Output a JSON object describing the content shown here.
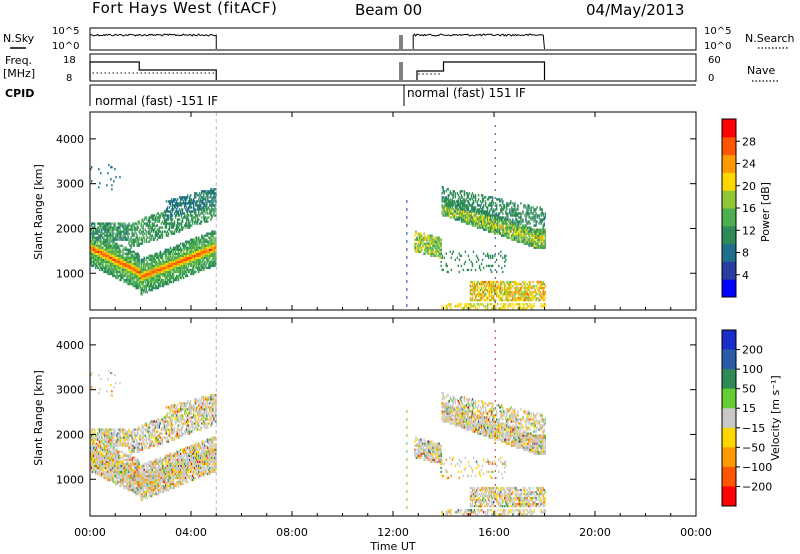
{
  "header": {
    "station": "Fort Hays West (fitACF)",
    "beam": "Beam 00",
    "date": "04/May/2013"
  },
  "left_labels": {
    "nsky": "N.Sky",
    "freq_line1": "Freq.",
    "freq_line2": "[MHz]",
    "cpid": "CPID"
  },
  "right_labels": {
    "nsearch": "N.Search",
    "nave": "Nave"
  },
  "strips": {
    "noise_left_ticks": [
      "10^5",
      "10^0"
    ],
    "noise_right_ticks": [
      "10^5",
      "10^0"
    ],
    "freq_left_ticks": [
      "18",
      "8"
    ],
    "freq_right_ticks": [
      "60",
      "0"
    ]
  },
  "cpid_labels": [
    {
      "text": "normal (fast) -151 IF",
      "start_hour": 0.0
    },
    {
      "text": "normal (fast) 151 IF",
      "start_hour": 12.95
    }
  ],
  "chart_data": [
    {
      "type": "heatmap",
      "name": "power",
      "xlabel": "Time UT",
      "ylabel": "Slant Range [km]",
      "xlim": [
        0,
        24
      ],
      "ylim": [
        180,
        4600
      ],
      "x_tick_labels": [
        "00:00",
        "04:00",
        "08:00",
        "12:00",
        "16:00",
        "20:00",
        "00:00"
      ],
      "y_ticks": [
        1000,
        2000,
        3000,
        4000
      ],
      "colorbar_label": "Power [dB]",
      "colorbar_ticks": [
        4,
        8,
        12,
        16,
        20,
        24,
        28
      ],
      "colorbar_range": [
        0,
        32
      ],
      "colors": [
        "#0000ff",
        "#2a3da0",
        "#1f6e8c",
        "#2e8b57",
        "#4caf50",
        "#90c83a",
        "#ffd700",
        "#ff9900",
        "#ff5500",
        "#ff0000"
      ],
      "data_windows_hours": [
        [
          0.0,
          5.0
        ],
        [
          12.8,
          18.0
        ]
      ]
    },
    {
      "type": "heatmap",
      "name": "velocity",
      "xlabel": "Time UT",
      "ylabel": "Slant Range [km]",
      "xlim": [
        0,
        24
      ],
      "ylim": [
        180,
        4600
      ],
      "x_tick_labels": [
        "00:00",
        "04:00",
        "08:00",
        "12:00",
        "16:00",
        "20:00",
        "00:00"
      ],
      "y_ticks": [
        1000,
        2000,
        3000,
        4000
      ],
      "colorbar_label": "Velocity [m s⁻¹]",
      "colorbar_ticks": [
        "200",
        "100",
        "50",
        "15",
        "−15",
        "−50",
        "−100",
        "−200"
      ],
      "colors": [
        "#1a2dc8",
        "#2a5da8",
        "#2e8b57",
        "#66cc33",
        "#c8c8c8",
        "#ffd700",
        "#ff9900",
        "#ff5500",
        "#ff0000"
      ],
      "data_windows_hours": [
        [
          0.0,
          5.0
        ],
        [
          12.8,
          18.0
        ]
      ]
    }
  ],
  "x_axis_title": "Time UT"
}
